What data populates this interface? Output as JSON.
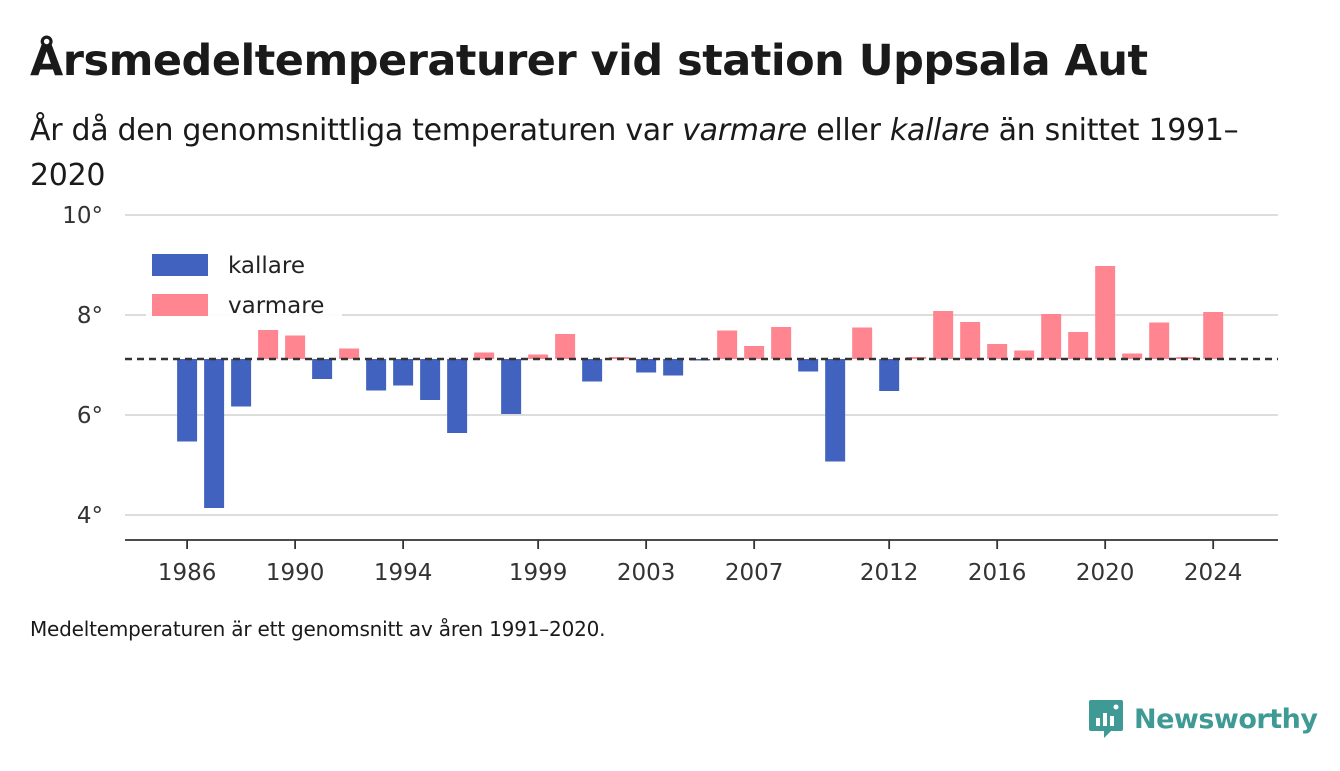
{
  "header": {
    "title": "Årsmedeltemperaturer vid station Uppsala Aut",
    "subtitle_before": "År då den genomsnittliga temperaturen var ",
    "subtitle_warm": "varmare",
    "subtitle_middle": " eller ",
    "subtitle_cold": "kallare",
    "subtitle_after": " än snittet 1991–2020"
  },
  "footnote": "Medeltemperaturen är ett genomsnitt av åren 1991–2020.",
  "brand": {
    "name": "Newsworthy",
    "icon": "newsworthy-logo-icon",
    "color": "#3f9a95"
  },
  "chart_data": {
    "type": "bar",
    "baseline": 7.12,
    "ylim": [
      3.5,
      10
    ],
    "y_ticks": [
      4,
      6,
      8,
      10
    ],
    "y_tick_labels": [
      "4°",
      "6°",
      "8°",
      "10°"
    ],
    "x_ticks": [
      1986,
      1990,
      1994,
      1999,
      2003,
      2007,
      2012,
      2016,
      2020,
      2024
    ],
    "x_tick_labels": [
      "1986",
      "1990",
      "1994",
      "1999",
      "2003",
      "2007",
      "2012",
      "2016",
      "2020",
      "2024"
    ],
    "xlim": [
      1983.7,
      2026.4
    ],
    "grid": true,
    "legend_position": "top-left",
    "colors": {
      "kallare": "#4163bf",
      "varmare": "#ff8591"
    },
    "series": [
      {
        "name": "kallare",
        "condition": "below baseline"
      },
      {
        "name": "varmare",
        "condition": "above baseline"
      }
    ],
    "x": [
      1986,
      1987,
      1988,
      1989,
      1990,
      1991,
      1992,
      1993,
      1994,
      1995,
      1996,
      1997,
      1998,
      1999,
      2000,
      2001,
      2002,
      2003,
      2004,
      2005,
      2006,
      2007,
      2008,
      2009,
      2010,
      2011,
      2012,
      2013,
      2014,
      2015,
      2016,
      2017,
      2018,
      2019,
      2020,
      2021,
      2022,
      2023,
      2024
    ],
    "values": [
      5.47,
      4.14,
      6.17,
      7.7,
      7.59,
      6.72,
      7.33,
      6.49,
      6.59,
      6.3,
      5.64,
      7.25,
      6.02,
      7.21,
      7.62,
      6.67,
      7.16,
      6.85,
      6.79,
      7.11,
      7.69,
      7.38,
      7.76,
      6.87,
      5.07,
      7.75,
      6.48,
      7.16,
      8.08,
      7.86,
      7.42,
      7.29,
      8.02,
      7.66,
      8.98,
      7.23,
      7.85,
      7.16,
      8.06
    ]
  }
}
